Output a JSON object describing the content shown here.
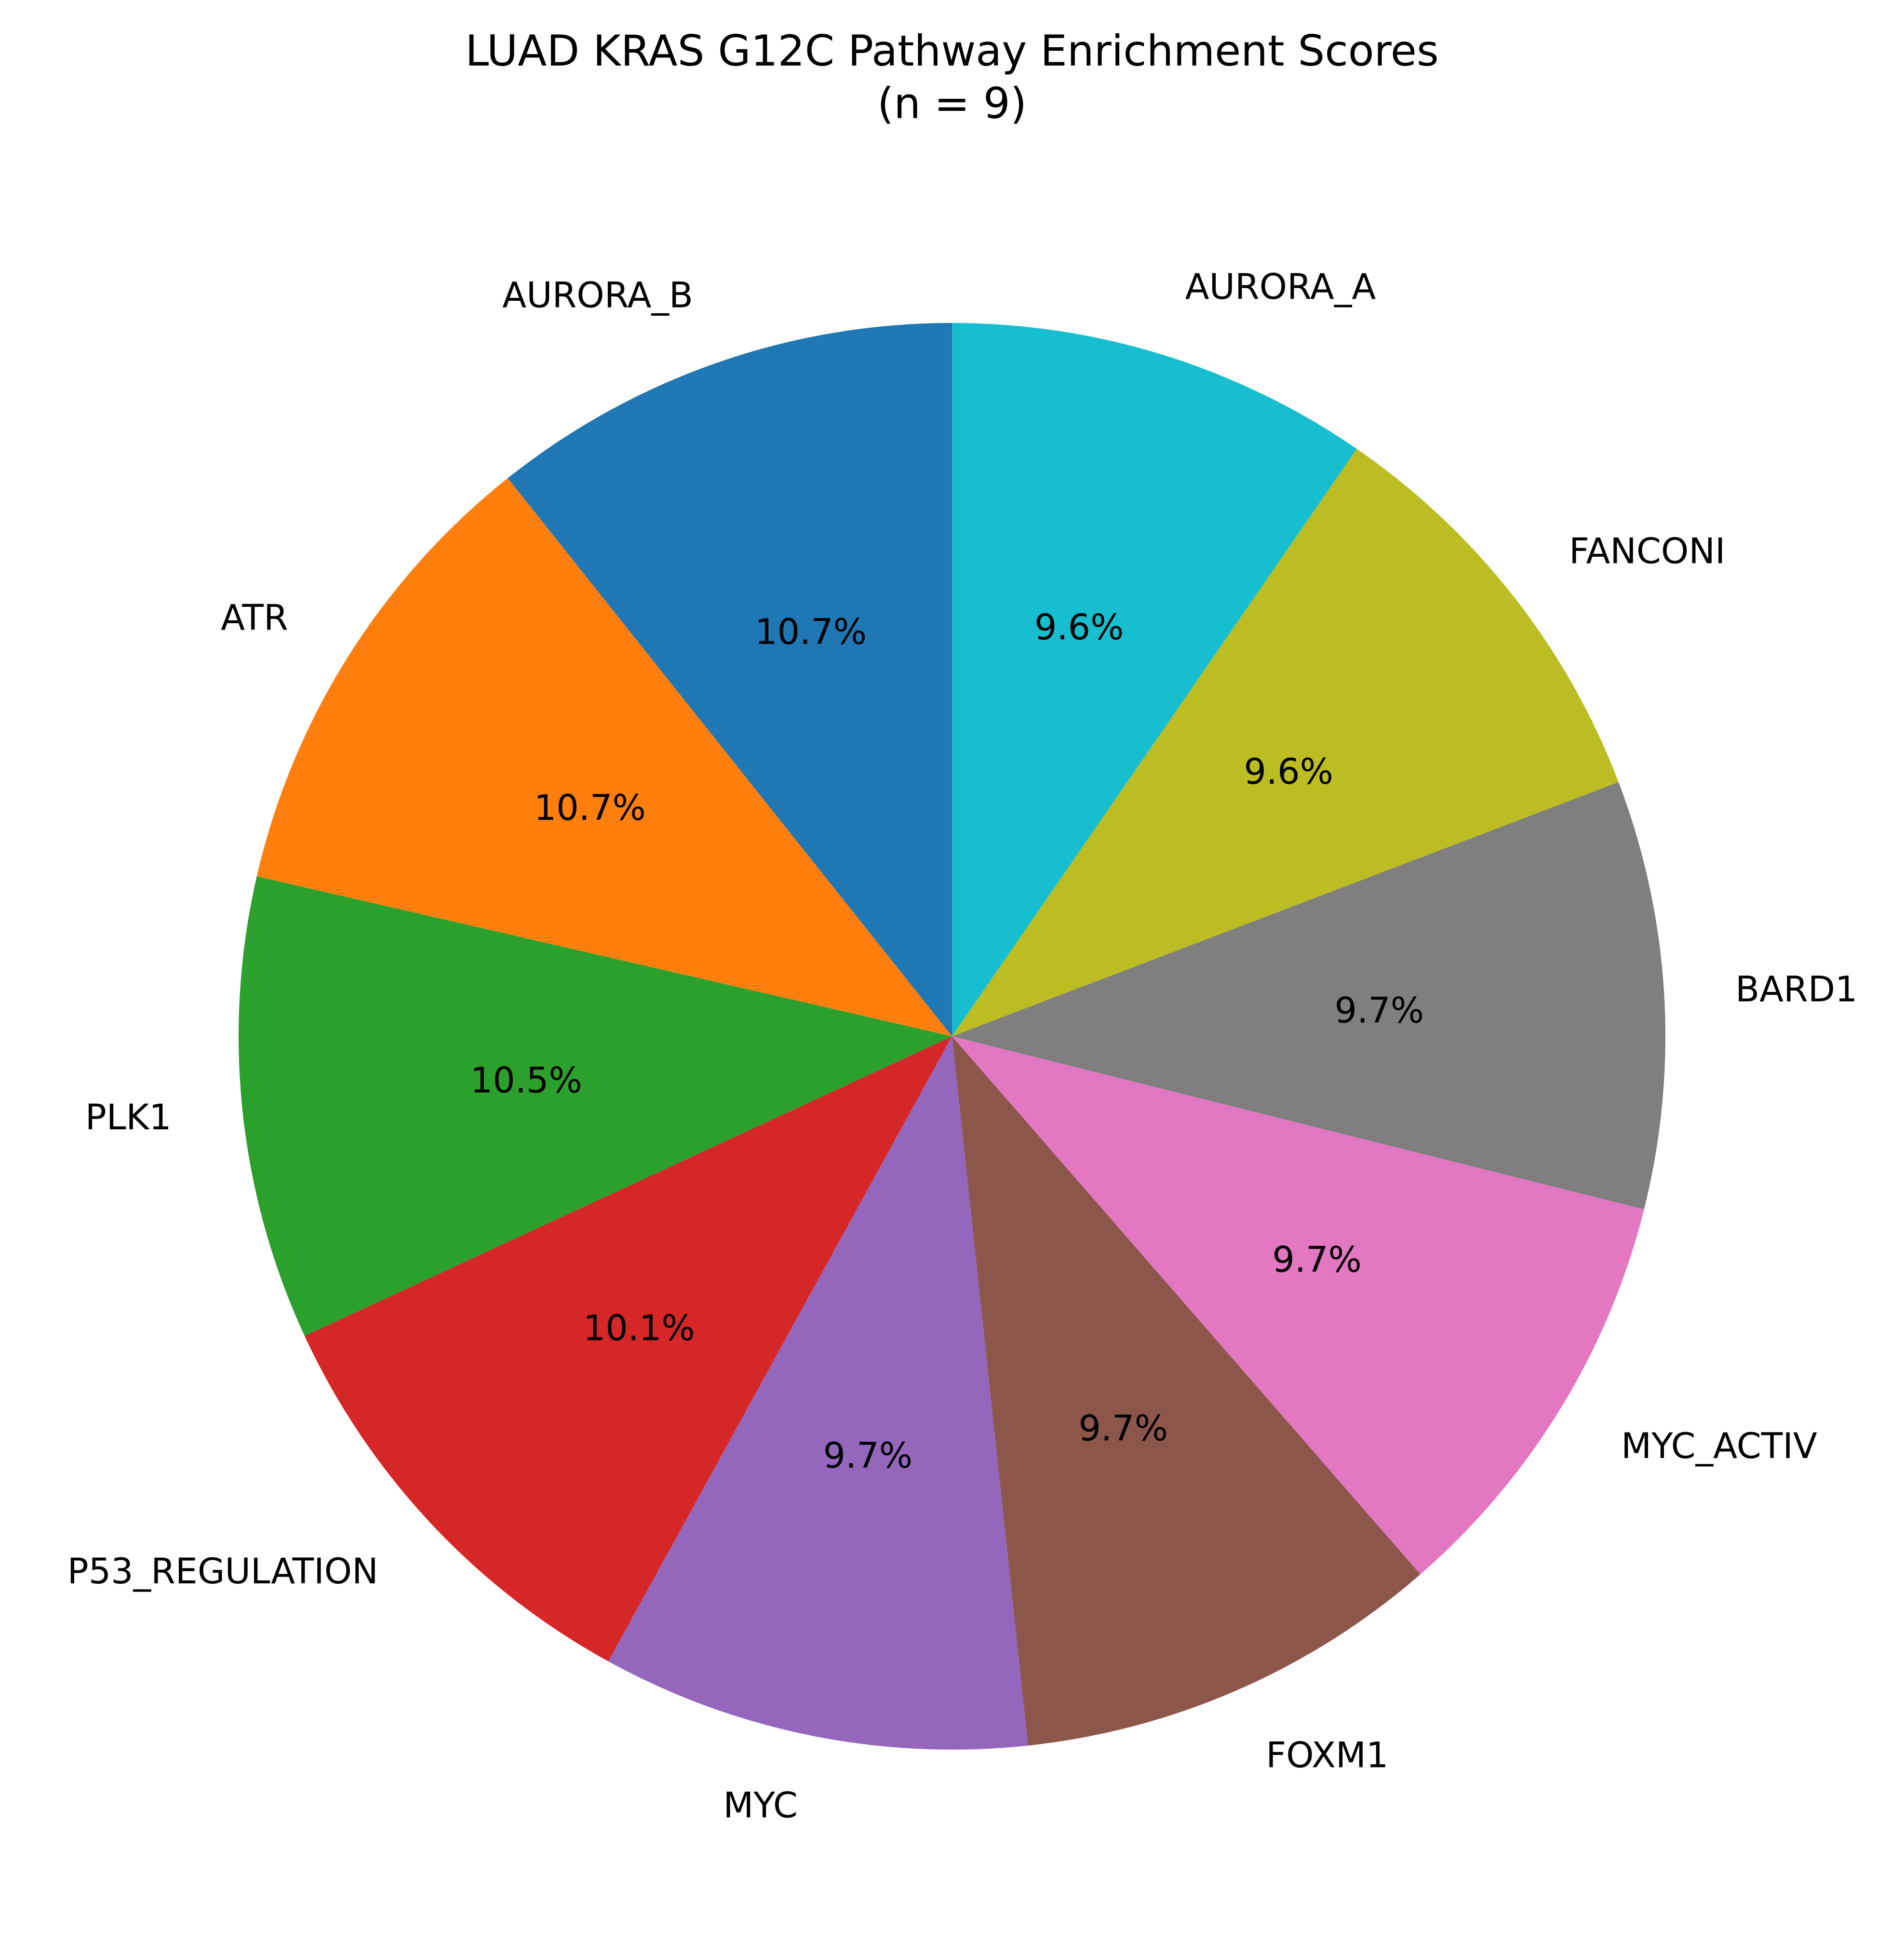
{
  "chart_data": {
    "type": "pie",
    "title": "LUAD KRAS G12C Pathway Enrichment Scores",
    "subtitle": "(n = 9)",
    "slices": [
      {
        "label": "AURORA_B",
        "value": 10.7,
        "pct_label": "10.7%",
        "color": "#1f77b4"
      },
      {
        "label": "ATR",
        "value": 10.7,
        "pct_label": "10.7%",
        "color": "#ff7f0e"
      },
      {
        "label": "PLK1",
        "value": 10.5,
        "pct_label": "10.5%",
        "color": "#2ca02c"
      },
      {
        "label": "P53_REGULATION",
        "value": 10.1,
        "pct_label": "10.1%",
        "color": "#d62728"
      },
      {
        "label": "MYC",
        "value": 9.7,
        "pct_label": "9.7%",
        "color": "#9467bd"
      },
      {
        "label": "FOXM1",
        "value": 9.7,
        "pct_label": "9.7%",
        "color": "#8c564b"
      },
      {
        "label": "MYC_ACTIV",
        "value": 9.7,
        "pct_label": "9.7%",
        "color": "#e377c2"
      },
      {
        "label": "BARD1",
        "value": 9.7,
        "pct_label": "9.7%",
        "color": "#7f7f7f"
      },
      {
        "label": "FANCONI",
        "value": 9.6,
        "pct_label": "9.6%",
        "color": "#bcbd22"
      },
      {
        "label": "AURORA_A",
        "value": 9.6,
        "pct_label": "9.6%",
        "color": "#17becf"
      }
    ],
    "start_angle_deg": 90,
    "direction": "counterclockwise",
    "legend": "none"
  }
}
